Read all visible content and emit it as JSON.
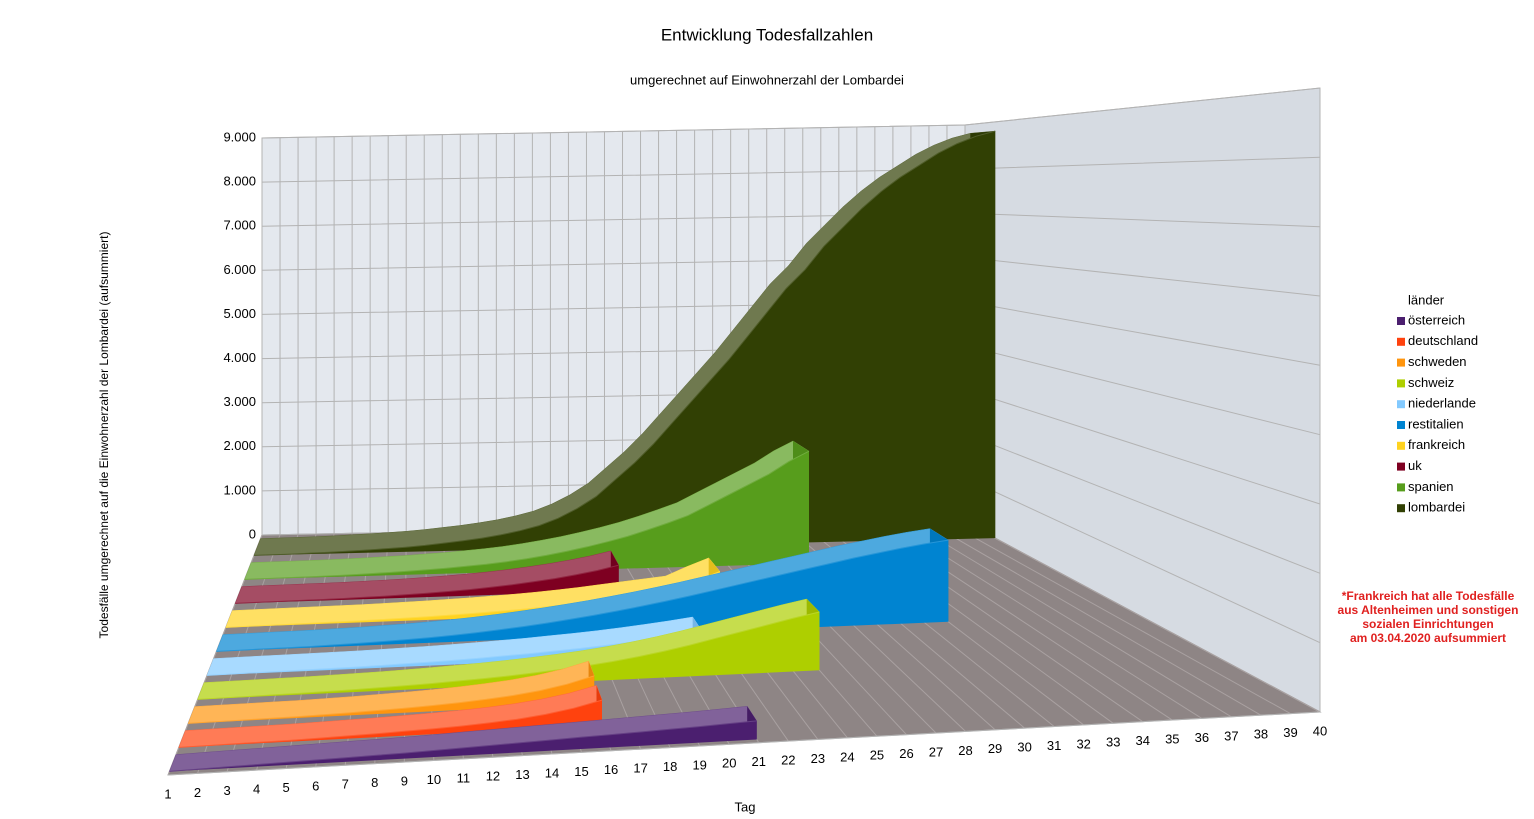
{
  "chart_data": {
    "type": "area3d",
    "title": "Entwicklung Todesfallzahlen",
    "subtitle": "umgerechnet auf Einwohnerzahl der Lombardei",
    "ylabel": "Todesfälle umgerechnet auf die Einwohnerzahl der Lombardei (aufsummiert)",
    "xlabel": "Tag",
    "legend_title": "länder",
    "legend": "right",
    "grid": true,
    "note": [
      "*Frankreich hat  alle Todesfälle",
      "aus Altenheimen  und sonstigen",
      "sozialen Einrichtungen",
      "am 03.04.2020 aufsummiert"
    ],
    "x": [
      1,
      2,
      3,
      4,
      5,
      6,
      7,
      8,
      9,
      10,
      11,
      12,
      13,
      14,
      15,
      16,
      17,
      18,
      19,
      20,
      21,
      22,
      23,
      24,
      25,
      26,
      27,
      28,
      29,
      30,
      31,
      32,
      33,
      34,
      35,
      36,
      37,
      38,
      39,
      40
    ],
    "xlim": [
      1,
      40
    ],
    "ylim": [
      0,
      9000
    ],
    "yticks": [
      0,
      {
        "value": 1000,
        "label": "1.000"
      },
      {
        "value": 2000,
        "label": "2.000"
      },
      {
        "value": 3000,
        "label": "3.000"
      },
      {
        "value": 4000,
        "label": "4.000"
      },
      {
        "value": 5000,
        "label": "5.000"
      },
      {
        "value": 6000,
        "label": "6.000"
      },
      {
        "value": 7000,
        "label": "7.000"
      },
      {
        "value": 8000,
        "label": "8.000"
      },
      {
        "value": 9000,
        "label": "9.000"
      }
    ],
    "series": [
      {
        "name": "österreich",
        "color": "#4b1f6f",
        "values": [
          0,
          10,
          20,
          30,
          40,
          50,
          60,
          70,
          80,
          95,
          110,
          125,
          140,
          155,
          170,
          185,
          200,
          215,
          230,
          250,
          270,
          null,
          null,
          null,
          null,
          null,
          null,
          null,
          null,
          null,
          null,
          null,
          null,
          null,
          null,
          null,
          null,
          null,
          null,
          null
        ]
      },
      {
        "name": "deutschland",
        "color": "#ff420e",
        "values": [
          0,
          5,
          10,
          15,
          20,
          30,
          40,
          50,
          65,
          80,
          100,
          125,
          160,
          210,
          280,
          380,
          null,
          null,
          null,
          null,
          null,
          null,
          null,
          null,
          null,
          null,
          null,
          null,
          null,
          null,
          null,
          null,
          null,
          null,
          null,
          null,
          null,
          null,
          null,
          null
        ]
      },
      {
        "name": "schweden",
        "color": "#ff950e",
        "values": [
          0,
          5,
          10,
          15,
          20,
          30,
          40,
          55,
          70,
          90,
          115,
          145,
          185,
          240,
          320,
          430,
          null,
          null,
          null,
          null,
          null,
          null,
          null,
          null,
          null,
          null,
          null,
          null,
          null,
          null,
          null,
          null,
          null,
          null,
          null,
          null,
          null,
          null,
          null,
          null
        ]
      },
      {
        "name": "schweiz",
        "color": "#aecf00",
        "values": [
          0,
          5,
          10,
          15,
          20,
          30,
          40,
          50,
          65,
          80,
          100,
          120,
          145,
          175,
          210,
          250,
          300,
          360,
          430,
          510,
          600,
          690,
          780,
          870,
          950,
          null,
          null,
          null,
          null,
          null,
          null,
          null,
          null,
          null,
          null,
          null,
          null,
          null,
          null,
          null
        ]
      },
      {
        "name": "niederlande",
        "color": "#83caff",
        "values": [
          0,
          5,
          10,
          15,
          20,
          25,
          30,
          40,
          50,
          60,
          75,
          90,
          110,
          130,
          155,
          180,
          210,
          245,
          285,
          330,
          380,
          null,
          null,
          null,
          null,
          null,
          null,
          null,
          null,
          null,
          null,
          null,
          null,
          null,
          null,
          null,
          null,
          null,
          null,
          null
        ]
      },
      {
        "name": "restitalien",
        "color": "#0084d1",
        "values": [
          0,
          5,
          10,
          15,
          20,
          30,
          40,
          55,
          70,
          90,
          115,
          145,
          180,
          220,
          265,
          315,
          370,
          430,
          495,
          565,
          640,
          720,
          800,
          880,
          960,
          1040,
          1120,
          1200,
          1270,
          1340,
          1400,
          1450,
          null,
          null,
          null,
          null,
          null,
          null,
          null,
          null
        ]
      },
      {
        "name": "frankreich",
        "color": "#ffd320",
        "values": [
          0,
          5,
          10,
          15,
          20,
          25,
          30,
          40,
          50,
          60,
          75,
          90,
          110,
          130,
          155,
          185,
          220,
          260,
          300,
          340,
          380,
          550,
          700,
          null,
          null,
          null,
          null,
          null,
          null,
          null,
          null,
          null,
          null,
          null,
          null,
          null,
          null,
          null,
          null,
          null
        ]
      },
      {
        "name": "uk",
        "color": "#7e0021",
        "values": [
          0,
          5,
          10,
          15,
          20,
          25,
          35,
          45,
          60,
          75,
          95,
          120,
          150,
          185,
          230,
          280,
          340,
          410,
          500,
          null,
          null,
          null,
          null,
          null,
          null,
          null,
          null,
          null,
          null,
          null,
          null,
          null,
          null,
          null,
          null,
          null,
          null,
          null,
          null,
          null
        ]
      },
      {
        "name": "spanien",
        "color": "#579d1c",
        "values": [
          0,
          5,
          10,
          15,
          20,
          30,
          40,
          55,
          70,
          90,
          110,
          140,
          170,
          210,
          260,
          320,
          390,
          470,
          560,
          660,
          780,
          910,
          1050,
          1250,
          1450,
          1650,
          1850,
          2100,
          2300,
          null,
          null,
          null,
          null,
          null,
          null,
          null,
          null,
          null,
          null,
          null
        ]
      },
      {
        "name": "lombardei",
        "color": "#314004",
        "values": [
          0,
          5,
          10,
          20,
          30,
          45,
          60,
          80,
          100,
          130,
          170,
          210,
          260,
          320,
          400,
          500,
          650,
          850,
          1100,
          1450,
          1800,
          2200,
          2650,
          3100,
          3550,
          4000,
          4500,
          5000,
          5500,
          5900,
          6400,
          6800,
          7200,
          7550,
          7850,
          8100,
          8350,
          8550,
          8700,
          8800
        ]
      }
    ]
  }
}
